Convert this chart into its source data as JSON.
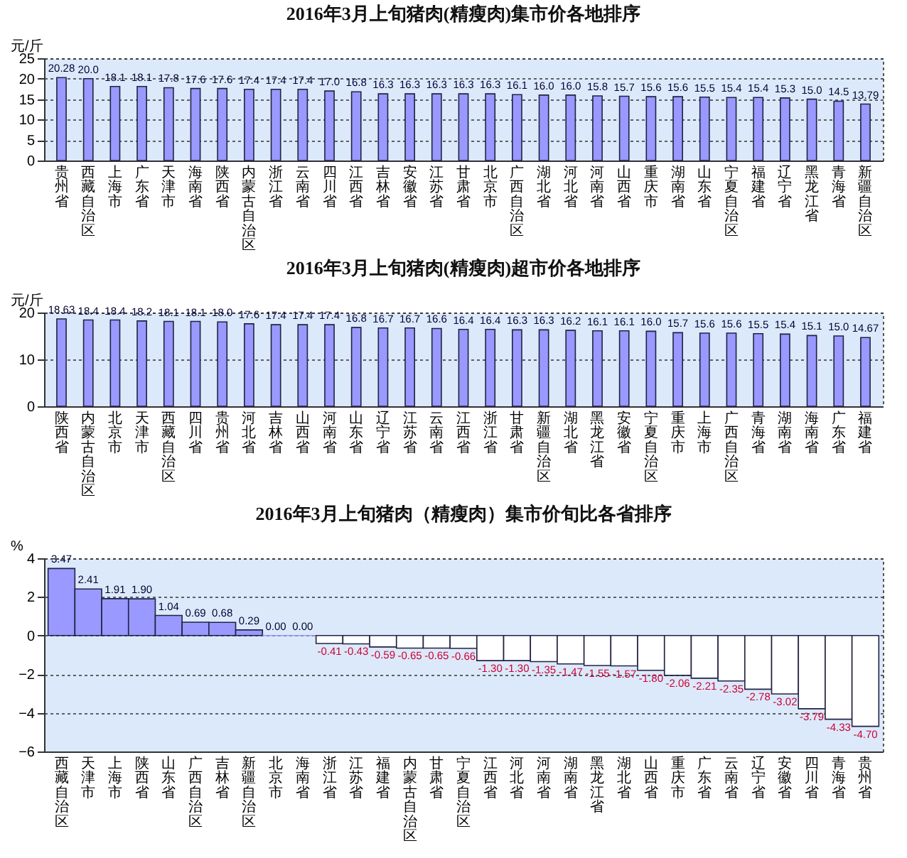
{
  "chart_data": [
    {
      "type": "bar",
      "title": "2016年3月上旬猪肉(精瘦肉)集市价各地排序",
      "ylabel": "元/斤",
      "categories": [
        "贵州省",
        "西藏自治区",
        "上海市",
        "广东省",
        "天津市",
        "海南省",
        "陕西省",
        "内蒙古自治区",
        "浙江省",
        "云南省",
        "四川省",
        "江西省",
        "吉林省",
        "安徽省",
        "江苏省",
        "甘肃省",
        "北京市",
        "广西自治区",
        "湖北省",
        "河北省",
        "河南省",
        "山西省",
        "重庆市",
        "湖南省",
        "山东省",
        "宁夏自治区",
        "福建省",
        "辽宁省",
        "黑龙江省",
        "青海省",
        "新疆自治区"
      ],
      "values": [
        20.28,
        20.0,
        18.1,
        18.1,
        17.8,
        17.6,
        17.6,
        17.4,
        17.4,
        17.4,
        17.0,
        16.8,
        16.3,
        16.3,
        16.3,
        16.3,
        16.3,
        16.1,
        16.0,
        16.0,
        15.8,
        15.7,
        15.6,
        15.6,
        15.5,
        15.4,
        15.4,
        15.3,
        15.0,
        14.5,
        13.79
      ],
      "value_labels": [
        "20.28",
        "20.0",
        "18.1",
        "18.1",
        "17.8",
        "17.6",
        "17.6",
        "17.4",
        "17.4",
        "17.4",
        "17.0",
        "16.8",
        "16.3",
        "16.3",
        "16.3",
        "16.3",
        "16.3",
        "16.1",
        "16.0",
        "16.0",
        "15.8",
        "15.7",
        "15.6",
        "15.6",
        "15.5",
        "15.4",
        "15.4",
        "15.3",
        "15.0",
        "14.5",
        "13.79"
      ],
      "color": "#9999ff",
      "ylim": [
        0,
        25
      ],
      "yticks": [
        0,
        5,
        10,
        15,
        20,
        25
      ],
      "grid": "y"
    },
    {
      "type": "bar",
      "title": "2016年3月上旬猪肉(精瘦肉)超市价各地排序",
      "ylabel": "元/斤",
      "categories": [
        "陕西省",
        "内蒙古自治区",
        "北京市",
        "天津市",
        "西藏自治区",
        "四川省",
        "贵州省",
        "河北省",
        "吉林省",
        "山西省",
        "河南省",
        "山东省",
        "辽宁省",
        "江苏省",
        "云南省",
        "江西省",
        "浙江省",
        "甘肃省",
        "新疆自治区",
        "湖北省",
        "黑龙江省",
        "安徽省",
        "宁夏自治区",
        "重庆市",
        "上海市",
        "广西自治区",
        "青海省",
        "湖南省",
        "海南省",
        "广东省",
        "福建省"
      ],
      "values": [
        18.63,
        18.4,
        18.4,
        18.2,
        18.1,
        18.1,
        18.0,
        17.6,
        17.4,
        17.4,
        17.4,
        16.8,
        16.7,
        16.7,
        16.6,
        16.4,
        16.4,
        16.3,
        16.3,
        16.2,
        16.1,
        16.1,
        16.0,
        15.7,
        15.6,
        15.6,
        15.5,
        15.4,
        15.1,
        15.0,
        14.67
      ],
      "value_labels": [
        "18.63",
        "18.4",
        "18.4",
        "18.2",
        "18.1",
        "18.1",
        "18.0",
        "17.6",
        "17.4",
        "17.4",
        "17.4",
        "16.8",
        "16.7",
        "16.7",
        "16.6",
        "16.4",
        "16.4",
        "16.3",
        "16.3",
        "16.2",
        "16.1",
        "16.1",
        "16.0",
        "15.7",
        "15.6",
        "15.6",
        "15.5",
        "15.4",
        "15.1",
        "15.0",
        "14.67"
      ],
      "color": "#9999ff",
      "ylim": [
        0,
        20
      ],
      "yticks": [
        0,
        10,
        20
      ],
      "grid": "y"
    },
    {
      "type": "bar",
      "title": "2016年3月上旬猪肉（精瘦肉）集市价旬比各省排序",
      "ylabel": "%",
      "categories": [
        "西藏自治区",
        "天津市",
        "上海市",
        "陕西省",
        "山东省",
        "广西自治区",
        "吉林省",
        "新疆自治区",
        "北京市",
        "海南省",
        "浙江省",
        "江苏省",
        "福建省",
        "内蒙古自治区",
        "甘肃省",
        "宁夏自治区",
        "江西省",
        "河北省",
        "河南省",
        "湖南省",
        "黑龙江省",
        "湖北省",
        "山西省",
        "重庆市",
        "广东省",
        "云南省",
        "辽宁省",
        "安徽省",
        "四川省",
        "青海省",
        "贵州省"
      ],
      "values": [
        3.47,
        2.41,
        1.91,
        1.9,
        1.04,
        0.69,
        0.68,
        0.29,
        0.0,
        0.0,
        -0.41,
        -0.43,
        -0.59,
        -0.65,
        -0.65,
        -0.66,
        -1.3,
        -1.3,
        -1.35,
        -1.47,
        -1.55,
        -1.57,
        -1.8,
        -2.06,
        -2.21,
        -2.35,
        -2.78,
        -3.02,
        -3.79,
        -4.33,
        -4.7
      ],
      "value_labels": [
        "3.47",
        "2.41",
        "1.91",
        "1.90",
        "1.04",
        "0.69",
        "0.68",
        "0.29",
        "0.00",
        "0.00",
        "-0.41",
        "-0.43",
        "-0.59",
        "-0.65",
        "-0.65",
        "-0.66",
        "-1.30",
        "-1.30",
        "-1.35",
        "-1.47",
        "-1.55",
        "-1.57",
        "-1.80",
        "-2.06",
        "-2.21",
        "-2.35",
        "-2.78",
        "-3.02",
        "-3.79",
        "-4.33",
        "-4.70"
      ],
      "colors": [
        "#9999ff",
        "#9999ff",
        "#9999ff",
        "#9999ff",
        "#9999ff",
        "#9999ff",
        "#9999ff",
        "#9999ff",
        "#9999ff",
        "#9999ff",
        "#ffffff",
        "#ffffff",
        "#ffffff",
        "#ffffff",
        "#ffffff",
        "#ffffff",
        "#ffffff",
        "#ffffff",
        "#ffffff",
        "#ffffff",
        "#ffffff",
        "#ffffff",
        "#ffffff",
        "#ffffff",
        "#ffffff",
        "#ffffff",
        "#ffffff",
        "#ffffff",
        "#ffffff",
        "#ffffff",
        "#ffffff"
      ],
      "ylim": [
        -6,
        4
      ],
      "yticks": [
        -6,
        -4,
        -2,
        0,
        2,
        4
      ],
      "grid": "y"
    }
  ]
}
